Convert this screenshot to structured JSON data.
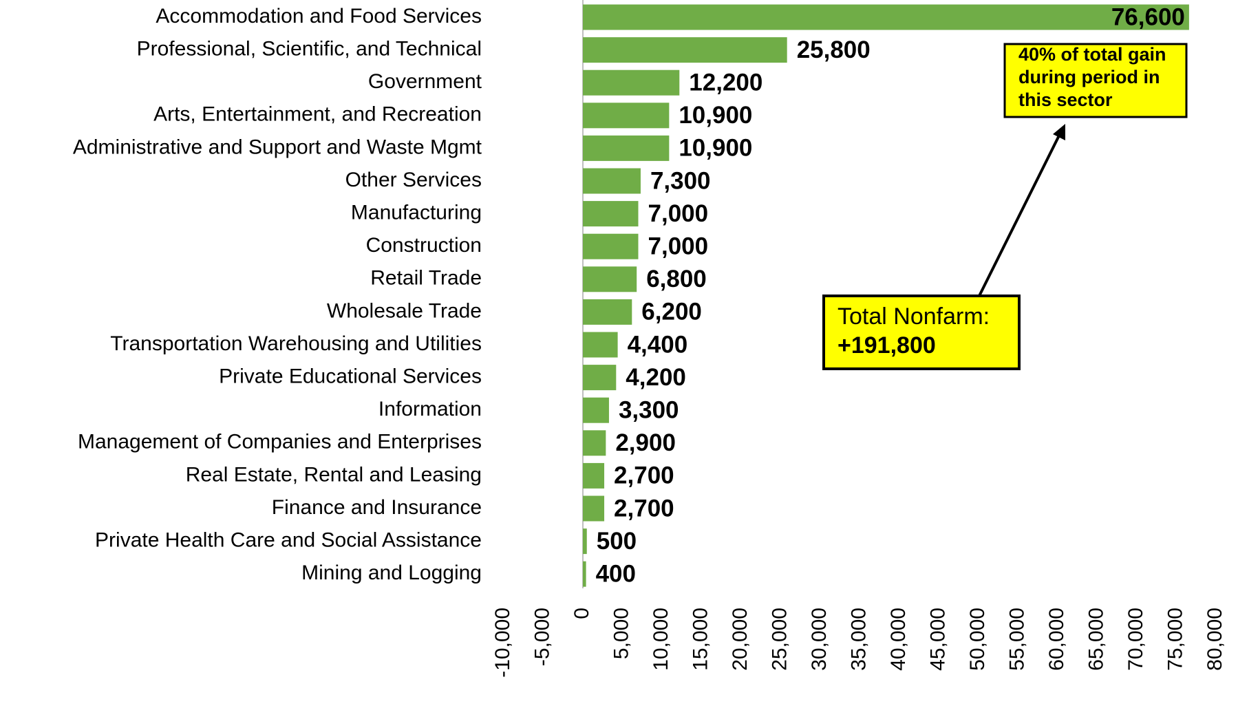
{
  "chart_data": {
    "type": "barh",
    "categories": [
      "Accommodation and Food Services",
      "Professional, Scientific, and Technical",
      "Government",
      "Arts, Entertainment, and Recreation",
      "Administrative and Support and Waste Mgmt",
      "Other Services",
      "Manufacturing",
      "Construction",
      "Retail Trade",
      "Wholesale Trade",
      "Transportation Warehousing and Utilities",
      "Private Educational Services",
      "Information",
      "Management of Companies and Enterprises",
      "Real Estate, Rental and Leasing",
      "Finance and Insurance",
      "Private Health Care and Social Assistance",
      "Mining and Logging"
    ],
    "values": [
      76600,
      25800,
      12200,
      10900,
      10900,
      7300,
      7000,
      7000,
      6800,
      6200,
      4400,
      4200,
      3300,
      2900,
      2700,
      2700,
      500,
      400
    ],
    "value_labels": [
      "76,600",
      "25,800",
      "12,200",
      "10,900",
      "10,900",
      "7,300",
      "7,000",
      "7,000",
      "6,800",
      "6,200",
      "4,400",
      "4,200",
      "3,300",
      "2,900",
      "2,700",
      "2,700",
      "500",
      "400"
    ],
    "color": "#70ad47",
    "xlim": [
      -10000,
      80000
    ],
    "xticks": [
      {
        "value": -10000,
        "label": "-10,000"
      },
      {
        "value": -5000,
        "label": "-5,000"
      },
      0,
      {
        "value": 5000,
        "label": "5,000"
      },
      {
        "value": 10000,
        "label": "10,000"
      },
      {
        "value": 15000,
        "label": "15,000"
      },
      {
        "value": 20000,
        "label": "20,000"
      },
      {
        "value": 25000,
        "label": "25,000"
      },
      {
        "value": 30000,
        "label": "30,000"
      },
      {
        "value": 35000,
        "label": "35,000"
      },
      {
        "value": 40000,
        "label": "40,000"
      },
      {
        "value": 45000,
        "label": "45,000"
      },
      {
        "value": 50000,
        "label": "50,000"
      },
      {
        "value": 55000,
        "label": "55,000"
      },
      {
        "value": 60000,
        "label": "60,000"
      },
      {
        "value": 65000,
        "label": "65,000"
      },
      {
        "value": 70000,
        "label": "70,000"
      },
      {
        "value": 75000,
        "label": "75,000"
      },
      {
        "value": 80000,
        "label": "80,000"
      }
    ],
    "grid": false,
    "annotations": [
      {
        "lines": [
          "40% of total gain",
          "during period in",
          "this sector"
        ]
      },
      {
        "lines": [
          "Total Nonfarm:",
          "+191,800"
        ]
      }
    ]
  }
}
